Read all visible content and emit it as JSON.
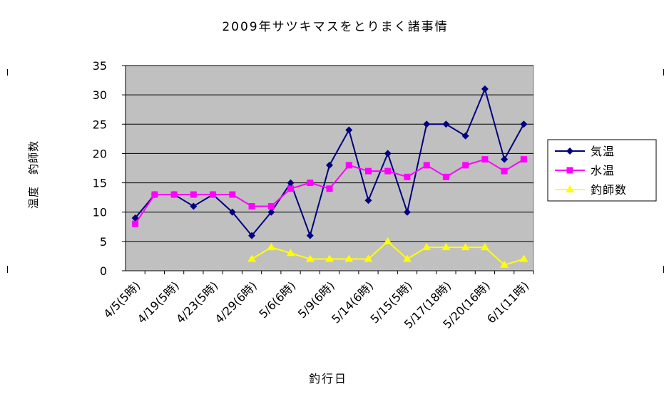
{
  "chart_data": {
    "type": "line",
    "title": "2009年サツキマスをとりまく諸事情",
    "xlabel": "釣行日",
    "ylabel": "温度　釣師数",
    "ylim": [
      0,
      35
    ],
    "yticks": [
      "0",
      "5",
      "10",
      "15",
      "20",
      "25",
      "30",
      "35"
    ],
    "grid": true,
    "legend_position": "right",
    "categories": [
      "4/5(5時)",
      "",
      "4/19(5時)",
      "",
      "4/23(5時)",
      "",
      "4/29(6時)",
      "",
      "5/6(6時)",
      "",
      "5/9(6時)",
      "",
      "5/14(6時)",
      "",
      "5/15(5時)",
      "",
      "5/17(18時)",
      "",
      "5/20(16時)",
      "",
      "6/1(11時)"
    ],
    "x_tick_labels": [
      "4/5(5時)",
      "4/19(5時)",
      "4/23(5時)",
      "4/29(6時)",
      "5/6(6時)",
      "5/9(6時)",
      "5/14(6時)",
      "5/15(5時)",
      "5/17(18時)",
      "5/20(16時)",
      "6/1(11時)"
    ],
    "series": [
      {
        "name": "気温",
        "color": "#000080",
        "marker": "diamond",
        "values": [
          9,
          13,
          13,
          11,
          13,
          10,
          6,
          10,
          15,
          6,
          18,
          24,
          12,
          20,
          10,
          25,
          25,
          23,
          31,
          19,
          25
        ]
      },
      {
        "name": "水温",
        "color": "#ff00ff",
        "marker": "square",
        "values": [
          8,
          13,
          13,
          13,
          13,
          13,
          11,
          11,
          14,
          15,
          14,
          18,
          17,
          17,
          16,
          18,
          16,
          18,
          19,
          17,
          19
        ]
      },
      {
        "name": "釣師数",
        "color": "#ffff00",
        "marker": "triangle",
        "values": [
          null,
          null,
          null,
          null,
          null,
          null,
          2,
          4,
          3,
          2,
          2,
          2,
          2,
          5,
          2,
          4,
          4,
          4,
          4,
          1,
          2
        ]
      }
    ]
  }
}
